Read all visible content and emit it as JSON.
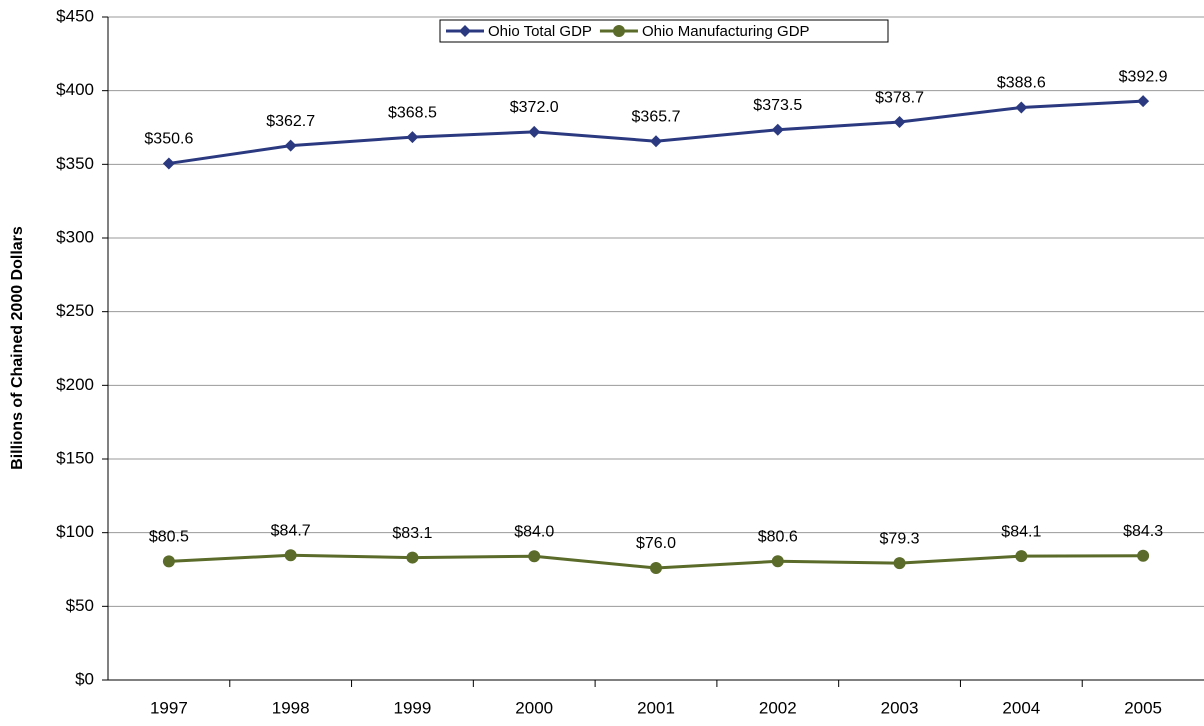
{
  "chart_data": {
    "type": "line",
    "y_label": "Billions of Chained 2000 Dollars",
    "categories": [
      "1997",
      "1998",
      "1999",
      "2000",
      "2001",
      "2002",
      "2003",
      "2004",
      "2005"
    ],
    "series": [
      {
        "name": "Ohio Total GDP",
        "color": "#2b3a80",
        "marker": "diamond",
        "values": [
          350.6,
          362.7,
          368.5,
          372.0,
          365.7,
          373.5,
          378.7,
          388.6,
          392.9
        ],
        "value_labels": [
          "$350.6",
          "$362.7",
          "$368.5",
          "$372.0",
          "$365.7",
          "$373.5",
          "$378.7",
          "$388.6",
          "$392.9"
        ]
      },
      {
        "name": "Ohio Manufacturing GDP",
        "color": "#5a6b2a",
        "marker": "circle",
        "values": [
          80.5,
          84.7,
          83.1,
          84.0,
          76.0,
          80.6,
          79.3,
          84.1,
          84.3
        ],
        "value_labels": [
          "$80.5",
          "$84.7",
          "$83.1",
          "$84.0",
          "$76.0",
          "$80.6",
          "$79.3",
          "$84.1",
          "$84.3"
        ]
      }
    ],
    "ylim": [
      0,
      450
    ],
    "yticks": [
      {
        "value": 0,
        "label": "$0"
      },
      {
        "value": 50,
        "label": "$50"
      },
      {
        "value": 100,
        "label": "$100"
      },
      {
        "value": 150,
        "label": "$150"
      },
      {
        "value": 200,
        "label": "$200"
      },
      {
        "value": 250,
        "label": "$250"
      },
      {
        "value": 300,
        "label": "$300"
      },
      {
        "value": 350,
        "label": "$350"
      },
      {
        "value": 400,
        "label": "$400"
      },
      {
        "value": 450,
        "label": "$450"
      }
    ],
    "grid": true,
    "legend": "top"
  }
}
